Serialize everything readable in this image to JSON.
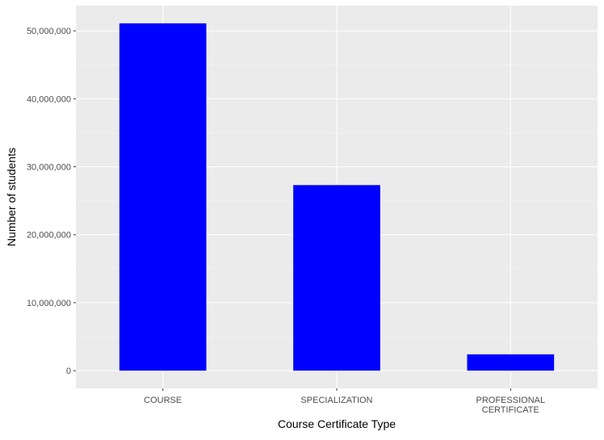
{
  "chart_data": {
    "type": "bar",
    "title": "",
    "xlabel": "Course Certificate Type",
    "ylabel": "Number of students",
    "categories": [
      [
        "COURSE"
      ],
      [
        "SPECIALIZATION"
      ],
      [
        "PROFESSIONAL",
        "CERTIFICATE"
      ]
    ],
    "values": [
      51100000,
      27300000,
      2400000
    ],
    "ylim": [
      -2600000,
      53700000
    ],
    "yticks": [
      0,
      10000000,
      20000000,
      30000000,
      40000000,
      50000000
    ],
    "ytick_labels": [
      "0",
      "10,000,000",
      "20,000,000",
      "30,000,000",
      "40,000,000",
      "50,000,000"
    ],
    "grid": true,
    "legend": "none",
    "colors": {
      "bar": "#0000ff",
      "panel": "#ebebeb",
      "grid_major": "#ffffff",
      "grid_minor": "#f5f5f5",
      "tick_text": "#4d4d4d",
      "tick_mark": "#333333"
    }
  }
}
